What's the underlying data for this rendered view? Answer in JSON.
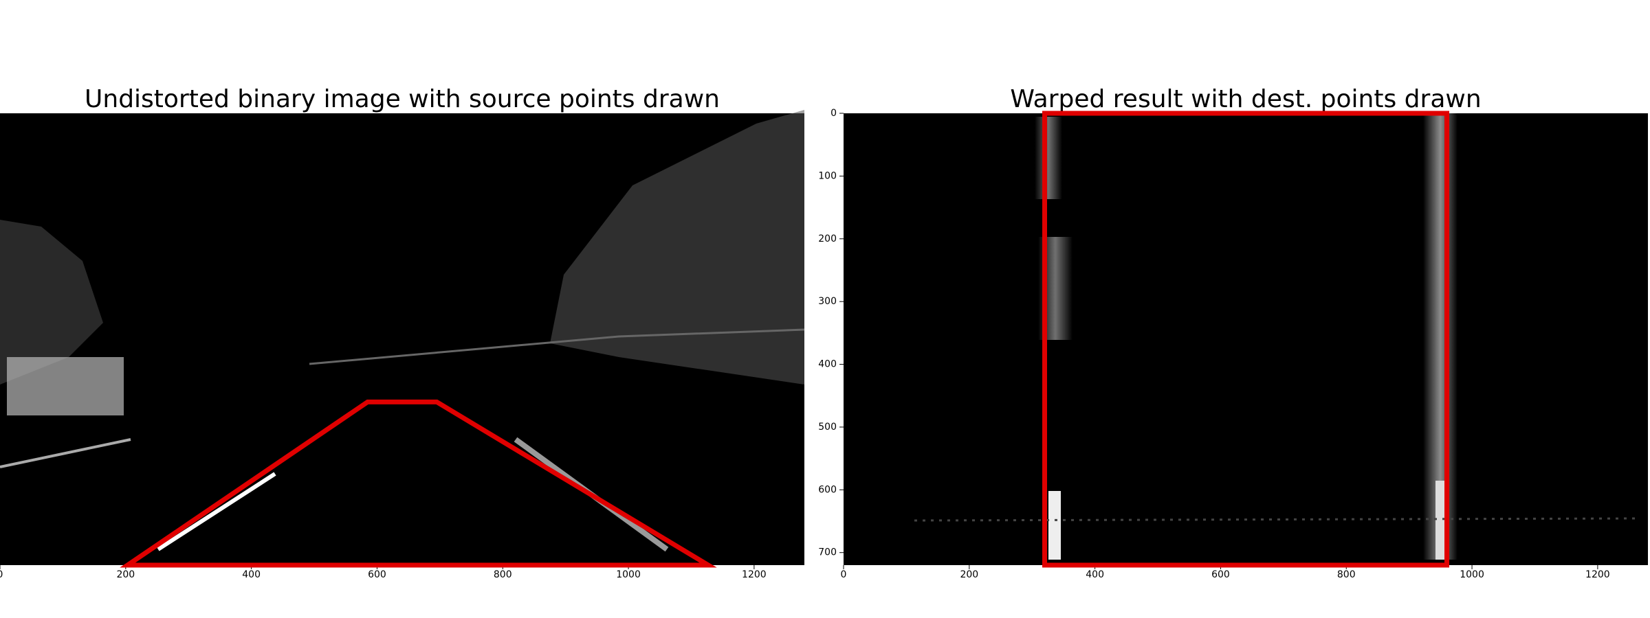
{
  "chart_data": [
    {
      "type": "image",
      "title": "Undistorted binary image with source points drawn",
      "x": [
        585,
        203,
        1127,
        695
      ],
      "values": [
        460,
        720,
        720,
        460
      ],
      "color": "#e00000",
      "xlim": [
        0,
        1280
      ],
      "ylim": [
        720,
        0
      ],
      "xticks": [
        0,
        200,
        400,
        600,
        800,
        1000,
        1200
      ]
    },
    {
      "type": "image",
      "title": "Warped result with dest. points drawn",
      "x": [
        320,
        320,
        960,
        960
      ],
      "values": [
        0,
        720,
        720,
        0
      ],
      "color": "#e00000",
      "xlim": [
        0,
        1280
      ],
      "ylim": [
        720,
        0
      ],
      "xticks": [
        0,
        200,
        400,
        600,
        800,
        1000,
        1200
      ],
      "yticks": [
        0,
        100,
        200,
        300,
        400,
        500,
        600,
        700
      ]
    }
  ]
}
